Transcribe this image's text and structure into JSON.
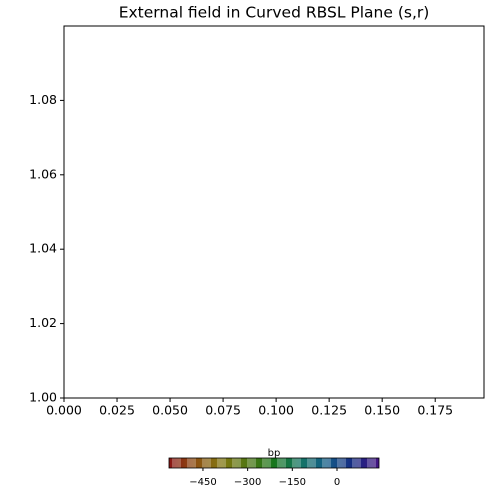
{
  "chart_data": {
    "type": "scatter",
    "title": "External field in Curved RBSL Plane (s,r)",
    "xlim": [
      0,
      0.198
    ],
    "ylim": [
      1.0,
      1.1
    ],
    "xticks": [
      {
        "value": 0,
        "label": "0.000"
      },
      {
        "value": 0.025,
        "label": "0.025"
      },
      {
        "value": 0.05,
        "label": "0.050"
      },
      {
        "value": 0.075,
        "label": "0.075"
      },
      {
        "value": 0.1,
        "label": "0.100"
      },
      {
        "value": 0.125,
        "label": "0.125"
      },
      {
        "value": 0.15,
        "label": "0.150"
      },
      {
        "value": 0.175,
        "label": "0.175"
      }
    ],
    "yticks": [
      {
        "value": 1.0,
        "label": "1.00"
      },
      {
        "value": 1.02,
        "label": "1.02"
      },
      {
        "value": 1.04,
        "label": "1.04"
      },
      {
        "value": 1.06,
        "label": "1.06"
      },
      {
        "value": 1.08,
        "label": "1.08"
      }
    ],
    "colorbar": {
      "label": "bp",
      "clim": [
        -564,
        141
      ],
      "ticks": [
        {
          "value": -450,
          "label": "−450"
        },
        {
          "value": -300,
          "label": "−300"
        },
        {
          "value": -150,
          "label": "−150"
        },
        0
      ],
      "colors": [
        "#d42020",
        "#d87a1a",
        "#c9b81c",
        "#7ab51c",
        "#22b52a",
        "#1fb39a",
        "#1f8fd0",
        "#2040c8",
        "#6a1fc8"
      ]
    }
  }
}
